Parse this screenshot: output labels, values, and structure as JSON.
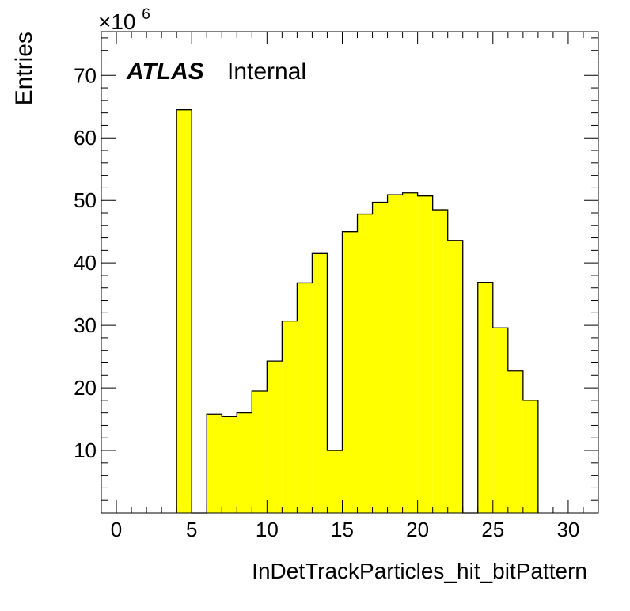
{
  "chart_data": {
    "type": "bar",
    "xlabel": "InDetTrackParticles_hit_bitPattern",
    "ylabel": "Entries",
    "y_multiplier_label": {
      "base": "×10",
      "exponent": "6"
    },
    "annotation": {
      "bold": "ATLAS",
      "normal": "Internal"
    },
    "xlim": [
      -1,
      32
    ],
    "ylim": [
      0,
      77
    ],
    "x_ticks": [
      0,
      5,
      10,
      15,
      20,
      25,
      30
    ],
    "y_ticks": [
      10,
      20,
      30,
      40,
      50,
      60,
      70
    ],
    "bin_width": 1,
    "bin_low_edges": [
      0,
      1,
      2,
      3,
      4,
      5,
      6,
      7,
      8,
      9,
      10,
      11,
      12,
      13,
      14,
      15,
      16,
      17,
      18,
      19,
      20,
      21,
      22,
      23,
      24,
      25,
      26,
      27,
      28,
      29,
      30,
      31
    ],
    "values": [
      0,
      0,
      0,
      0,
      64.5,
      0,
      15.8,
      15.4,
      16,
      19.5,
      24.3,
      30.7,
      36.8,
      41.5,
      10,
      45,
      47.8,
      49.7,
      50.9,
      51.2,
      50.7,
      48.5,
      43.6,
      0,
      36.9,
      29.6,
      22.7,
      18,
      0,
      0,
      0,
      0
    ],
    "fill_color": "#ffff00",
    "line_color": "#000000",
    "grid": false,
    "legend": "none"
  }
}
